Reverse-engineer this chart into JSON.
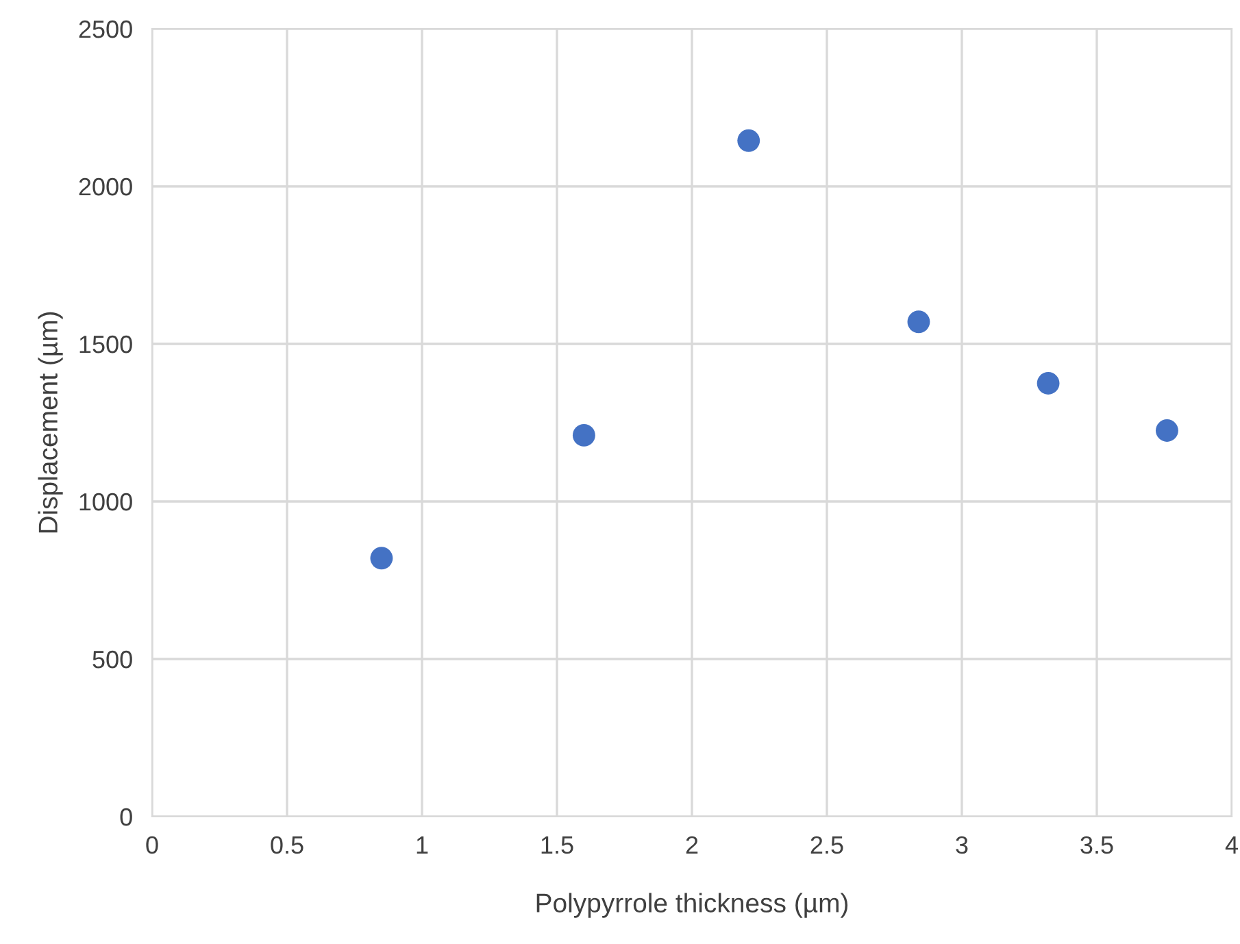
{
  "chart_data": {
    "type": "scatter",
    "xlabel": "Polypyrrole thickness (µm)",
    "ylabel": "Displacement (µm)",
    "x": [
      0.85,
      1.6,
      2.21,
      2.84,
      3.32,
      3.76
    ],
    "series": [
      {
        "color": "#4472c4",
        "values": [
          820,
          1210,
          2145,
          1570,
          1375,
          1225
        ]
      }
    ],
    "xlim": [
      0,
      4
    ],
    "xticks": [
      0,
      0.5,
      1,
      1.5,
      2,
      2.5,
      3,
      3.5,
      4
    ],
    "ylim": [
      0,
      2500
    ],
    "yticks": [
      0,
      500,
      1000,
      1500,
      2000,
      2500
    ],
    "grid": true,
    "marker": "circle"
  }
}
